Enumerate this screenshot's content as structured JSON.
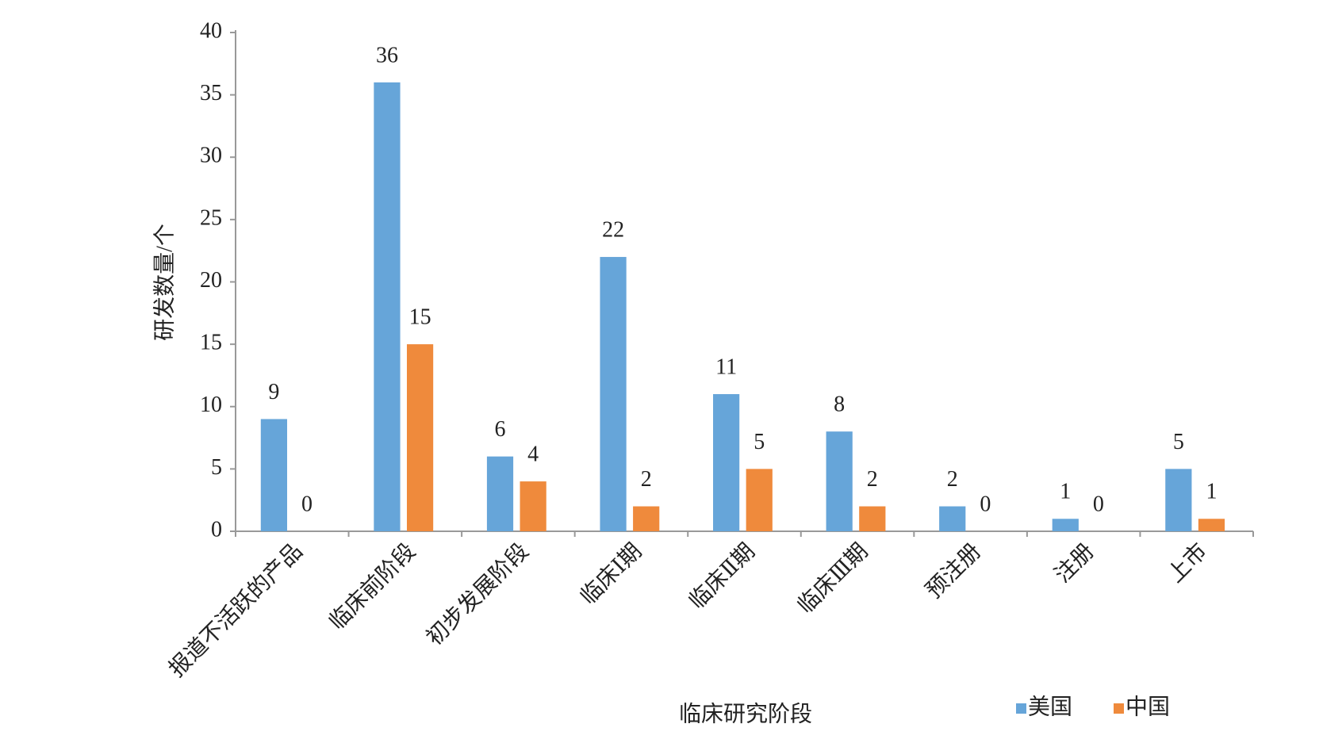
{
  "chart_data": {
    "type": "bar",
    "x_label": "临床研究阶段",
    "y_label": "研发数量/个",
    "categories": [
      "报道不活跃的产品",
      "临床前阶段",
      "初步发展阶段",
      "临床Ⅰ期",
      "临床Ⅱ期",
      "临床Ⅲ期",
      "预注册",
      "注册",
      "上市"
    ],
    "series": [
      {
        "name": "美国",
        "color": "#66a5d9",
        "values": [
          9,
          36,
          6,
          22,
          11,
          8,
          2,
          1,
          5
        ]
      },
      {
        "name": "中国",
        "color": "#ef8a3c",
        "values": [
          0,
          15,
          4,
          2,
          5,
          2,
          0,
          0,
          1
        ]
      }
    ],
    "ylim": [
      0,
      40
    ],
    "yticks": [
      0,
      5,
      10,
      15,
      20,
      25,
      30,
      35,
      40
    ]
  }
}
